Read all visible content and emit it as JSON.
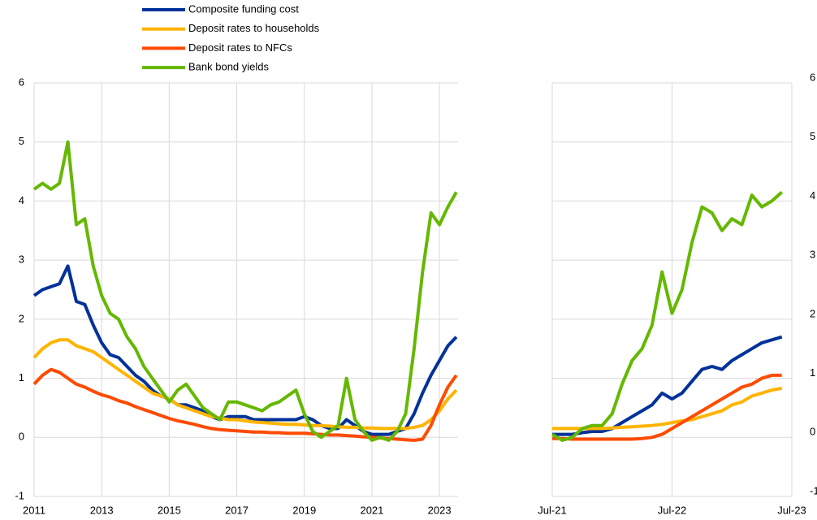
{
  "chart_data": [
    {
      "type": "line",
      "x": [
        2011,
        2011.25,
        2011.5,
        2011.75,
        2012,
        2012.25,
        2012.5,
        2012.75,
        2013,
        2013.25,
        2013.5,
        2013.75,
        2014,
        2014.25,
        2014.5,
        2014.75,
        2015,
        2015.25,
        2015.5,
        2015.75,
        2016,
        2016.25,
        2016.5,
        2016.75,
        2017,
        2017.25,
        2017.5,
        2017.75,
        2018,
        2018.25,
        2018.5,
        2018.75,
        2019,
        2019.25,
        2019.5,
        2019.75,
        2020,
        2020.25,
        2020.5,
        2020.75,
        2021,
        2021.25,
        2021.5,
        2021.75,
        2022,
        2022.25,
        2022.5,
        2022.75,
        2023,
        2023.25,
        2023.5
      ],
      "series": [
        {
          "name": "Composite funding cost",
          "color": "#003299",
          "values": [
            2.4,
            2.5,
            2.55,
            2.6,
            2.9,
            2.3,
            2.25,
            1.9,
            1.6,
            1.4,
            1.35,
            1.2,
            1.05,
            0.95,
            0.8,
            0.7,
            0.65,
            0.55,
            0.55,
            0.5,
            0.45,
            0.35,
            0.3,
            0.35,
            0.35,
            0.35,
            0.3,
            0.3,
            0.3,
            0.3,
            0.3,
            0.3,
            0.35,
            0.3,
            0.2,
            0.15,
            0.15,
            0.3,
            0.2,
            0.1,
            0.05,
            0.05,
            0.05,
            0.1,
            0.15,
            0.4,
            0.75,
            1.05,
            1.3,
            1.55,
            1.7
          ]
        },
        {
          "name": "Deposit rates to households",
          "color": "#ffb400",
          "values": [
            1.35,
            1.5,
            1.6,
            1.65,
            1.65,
            1.55,
            1.5,
            1.45,
            1.35,
            1.25,
            1.15,
            1.05,
            0.95,
            0.85,
            0.75,
            0.7,
            0.65,
            0.55,
            0.5,
            0.45,
            0.4,
            0.35,
            0.33,
            0.3,
            0.3,
            0.28,
            0.26,
            0.25,
            0.24,
            0.23,
            0.22,
            0.22,
            0.21,
            0.2,
            0.2,
            0.19,
            0.18,
            0.17,
            0.17,
            0.16,
            0.16,
            0.15,
            0.15,
            0.15,
            0.15,
            0.17,
            0.2,
            0.3,
            0.45,
            0.65,
            0.8
          ]
        },
        {
          "name": "Deposit rates to NFCs",
          "color": "#ff4b00",
          "values": [
            0.9,
            1.05,
            1.15,
            1.1,
            1.0,
            0.9,
            0.85,
            0.78,
            0.72,
            0.68,
            0.62,
            0.58,
            0.52,
            0.47,
            0.42,
            0.37,
            0.32,
            0.28,
            0.25,
            0.22,
            0.18,
            0.15,
            0.13,
            0.12,
            0.11,
            0.1,
            0.09,
            0.09,
            0.08,
            0.08,
            0.07,
            0.07,
            0.07,
            0.06,
            0.05,
            0.04,
            0.04,
            0.03,
            0.02,
            0.01,
            0,
            -0.01,
            -0.02,
            -0.03,
            -0.04,
            -0.05,
            -0.03,
            0.2,
            0.55,
            0.85,
            1.05
          ]
        },
        {
          "name": "Bank bond yields",
          "color": "#65b800",
          "values": [
            4.2,
            4.3,
            4.2,
            4.3,
            5.0,
            3.6,
            3.7,
            2.9,
            2.4,
            2.1,
            2.0,
            1.7,
            1.5,
            1.2,
            1.0,
            0.8,
            0.6,
            0.8,
            0.9,
            0.7,
            0.5,
            0.4,
            0.3,
            0.6,
            0.6,
            0.55,
            0.5,
            0.45,
            0.55,
            0.6,
            0.7,
            0.8,
            0.4,
            0.1,
            0.0,
            0.1,
            0.2,
            1.0,
            0.3,
            0.1,
            -0.05,
            0.0,
            -0.05,
            0.1,
            0.4,
            1.5,
            2.8,
            3.8,
            3.6,
            3.9,
            4.15
          ]
        }
      ],
      "xlim": [
        2011,
        2023.55
      ],
      "xticks": [
        2011,
        2013,
        2015,
        2017,
        2019,
        2021,
        2023
      ],
      "ylim": [
        -1,
        6
      ],
      "yticks": [
        -1,
        0,
        1,
        2,
        3,
        4,
        5,
        6
      ],
      "grid": true
    },
    {
      "type": "line",
      "x": [
        "2021-07",
        "2021-08",
        "2021-09",
        "2021-10",
        "2021-11",
        "2021-12",
        "2022-01",
        "2022-02",
        "2022-03",
        "2022-04",
        "2022-05",
        "2022-06",
        "2022-07",
        "2022-08",
        "2022-09",
        "2022-10",
        "2022-11",
        "2022-12",
        "2023-01",
        "2023-02",
        "2023-03",
        "2023-04",
        "2023-05",
        "2023-06"
      ],
      "series": [
        {
          "color": "#003299",
          "values": [
            0.05,
            0.05,
            0.05,
            0.08,
            0.1,
            0.1,
            0.15,
            0.25,
            0.35,
            0.45,
            0.55,
            0.75,
            0.65,
            0.75,
            0.95,
            1.15,
            1.2,
            1.15,
            1.3,
            1.4,
            1.5,
            1.6,
            1.65,
            1.7
          ]
        },
        {
          "color": "#ffb400",
          "values": [
            0.15,
            0.15,
            0.15,
            0.15,
            0.15,
            0.15,
            0.16,
            0.17,
            0.18,
            0.19,
            0.2,
            0.22,
            0.25,
            0.28,
            0.3,
            0.35,
            0.4,
            0.45,
            0.55,
            0.6,
            0.7,
            0.75,
            0.8,
            0.83
          ]
        },
        {
          "color": "#ff4b00",
          "values": [
            -0.02,
            -0.02,
            -0.03,
            -0.03,
            -0.03,
            -0.03,
            -0.03,
            -0.03,
            -0.03,
            -0.02,
            0.0,
            0.05,
            0.15,
            0.25,
            0.35,
            0.45,
            0.55,
            0.65,
            0.75,
            0.85,
            0.9,
            1.0,
            1.05,
            1.05
          ]
        },
        {
          "color": "#65b800",
          "values": [
            0.05,
            -0.05,
            0.0,
            0.15,
            0.2,
            0.2,
            0.4,
            0.9,
            1.3,
            1.5,
            1.9,
            2.8,
            2.1,
            2.5,
            3.3,
            3.9,
            3.8,
            3.5,
            3.7,
            3.6,
            4.1,
            3.9,
            4.0,
            4.15
          ]
        }
      ],
      "xlim": [
        "2021-07",
        "2023-07"
      ],
      "xticks": [
        {
          "value": "2021-07",
          "label": "Jul-21"
        },
        {
          "value": "2022-07",
          "label": "Jul-22"
        },
        {
          "value": "2023-07",
          "label": "Jul-23"
        }
      ],
      "ylim": [
        -1,
        6
      ],
      "yticks": [
        -1,
        0,
        1,
        2,
        3,
        4,
        5,
        6
      ],
      "grid": true
    }
  ]
}
